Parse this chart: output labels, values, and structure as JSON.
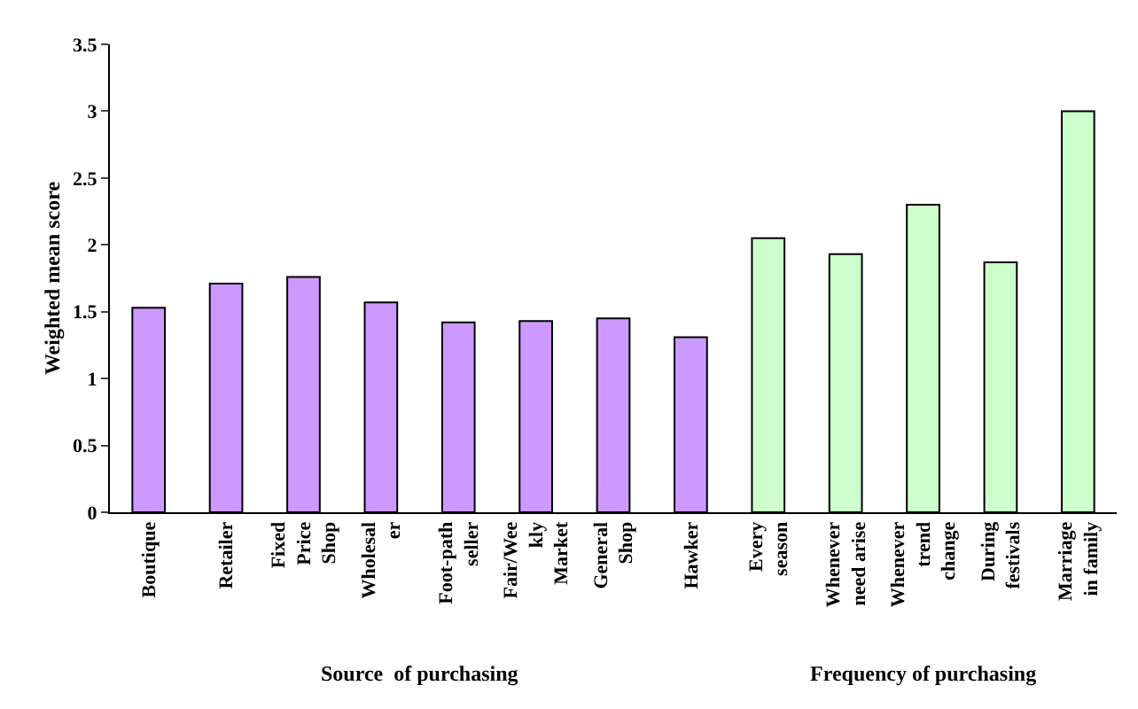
{
  "chart_data": {
    "type": "bar",
    "ylabel": "Weighted mean score",
    "categories": [
      "Boutique",
      "Retailer",
      "Fixed\nPrice\nShop",
      "Wholesal\ner",
      "Foot-path\nseller",
      "Fair/Wee\nkly\nMarket",
      "General\nShop",
      "Hawker",
      "Every\nseason",
      "Whenever\nneed arise",
      "Whenever\ntrend\nchange",
      "During\nfestivals",
      "Marriage\nin family"
    ],
    "series": [
      {
        "color": "#cc99ff",
        "values": [
          1.53,
          1.71,
          1.76,
          1.57,
          1.42,
          1.43,
          1.45,
          1.31,
          null,
          null,
          null,
          null,
          null
        ]
      },
      {
        "color": "#ccffcc",
        "values": [
          null,
          null,
          null,
          null,
          null,
          null,
          null,
          null,
          2.05,
          1.93,
          2.3,
          1.87,
          3.0
        ]
      }
    ],
    "ylim": [
      0,
      3.5
    ],
    "yticks": [
      0,
      0.5,
      1,
      1.5,
      2,
      2.5,
      3,
      3.5
    ],
    "annotations": [
      "Source  of purchasing",
      "Frequency of purchasing"
    ]
  }
}
